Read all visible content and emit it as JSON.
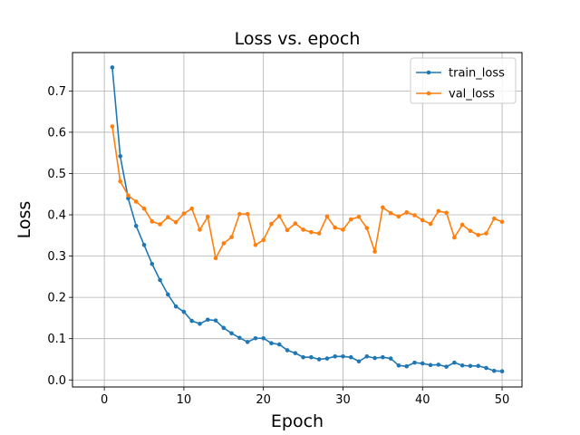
{
  "chart_data": {
    "type": "line",
    "title": "Loss vs. epoch",
    "xlabel": "Epoch",
    "ylabel": "Loss",
    "xlim": [
      -4,
      52.5
    ],
    "ylim": [
      -0.017,
      0.793
    ],
    "xticks": [
      0,
      10,
      20,
      30,
      40,
      50
    ],
    "yticks": [
      0.0,
      0.1,
      0.2,
      0.3,
      0.4,
      0.5,
      0.6,
      0.7
    ],
    "grid": true,
    "legend_position": "top-right",
    "x": [
      1,
      2,
      3,
      4,
      5,
      6,
      7,
      8,
      9,
      10,
      11,
      12,
      13,
      14,
      15,
      16,
      17,
      18,
      19,
      20,
      21,
      22,
      23,
      24,
      25,
      26,
      27,
      28,
      29,
      30,
      31,
      32,
      33,
      34,
      35,
      36,
      37,
      38,
      39,
      40,
      41,
      42,
      43,
      44,
      45,
      46,
      47,
      48,
      49,
      50
    ],
    "series": [
      {
        "name": "train_loss",
        "color": "#1f77b4",
        "values": [
          0.757,
          0.542,
          0.44,
          0.373,
          0.327,
          0.281,
          0.242,
          0.207,
          0.178,
          0.165,
          0.143,
          0.136,
          0.146,
          0.144,
          0.126,
          0.113,
          0.102,
          0.092,
          0.101,
          0.101,
          0.089,
          0.086,
          0.072,
          0.065,
          0.055,
          0.055,
          0.05,
          0.052,
          0.057,
          0.057,
          0.055,
          0.045,
          0.057,
          0.053,
          0.055,
          0.052,
          0.035,
          0.033,
          0.042,
          0.04,
          0.036,
          0.037,
          0.032,
          0.042,
          0.035,
          0.034,
          0.034,
          0.029,
          0.022,
          0.021
        ]
      },
      {
        "name": "val_loss",
        "color": "#ff7f0e",
        "values": [
          0.614,
          0.481,
          0.447,
          0.432,
          0.415,
          0.384,
          0.377,
          0.394,
          0.382,
          0.403,
          0.415,
          0.364,
          0.395,
          0.295,
          0.331,
          0.346,
          0.402,
          0.402,
          0.327,
          0.339,
          0.378,
          0.397,
          0.363,
          0.379,
          0.364,
          0.358,
          0.355,
          0.396,
          0.369,
          0.364,
          0.389,
          0.395,
          0.368,
          0.311,
          0.418,
          0.404,
          0.396,
          0.406,
          0.399,
          0.387,
          0.378,
          0.409,
          0.405,
          0.345,
          0.376,
          0.361,
          0.351,
          0.355,
          0.391,
          0.383
        ]
      }
    ]
  }
}
